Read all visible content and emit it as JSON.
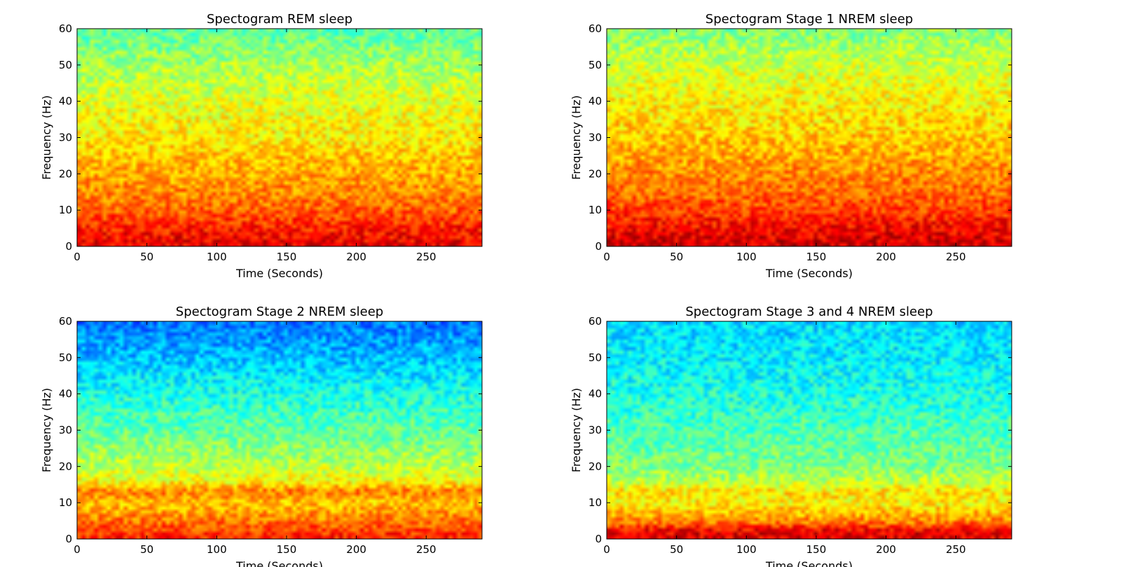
{
  "chart_data": [
    {
      "type": "heatmap",
      "title": "Spectogram REM sleep",
      "xlabel": "Time (Seconds)",
      "ylabel": "Frequency (Hz)",
      "xlim": [
        0,
        290
      ],
      "ylim": [
        0,
        60
      ],
      "xticks": [
        "0",
        "50",
        "100",
        "150",
        "200",
        "250"
      ],
      "yticks": [
        "0",
        "10",
        "20",
        "30",
        "40",
        "50",
        "60"
      ],
      "colormap": "jet",
      "power_profile": [
        {
          "frequency": 0,
          "level": 0.9
        },
        {
          "frequency": 5,
          "level": 0.85
        },
        {
          "frequency": 10,
          "level": 0.78
        },
        {
          "frequency": 15,
          "level": 0.74
        },
        {
          "frequency": 20,
          "level": 0.71
        },
        {
          "frequency": 25,
          "level": 0.68
        },
        {
          "frequency": 30,
          "level": 0.64
        },
        {
          "frequency": 40,
          "level": 0.6
        },
        {
          "frequency": 50,
          "level": 0.54
        },
        {
          "frequency": 60,
          "level": 0.46
        }
      ]
    },
    {
      "type": "heatmap",
      "title": "Spectogram Stage 1 NREM sleep",
      "xlabel": "Time (Seconds)",
      "ylabel": "Frequency (Hz)",
      "xlim": [
        0,
        290
      ],
      "ylim": [
        0,
        60
      ],
      "xticks": [
        "0",
        "50",
        "100",
        "150",
        "200",
        "250"
      ],
      "yticks": [
        "0",
        "10",
        "20",
        "30",
        "40",
        "50",
        "60"
      ],
      "colormap": "jet",
      "power_profile": [
        {
          "frequency": 0,
          "level": 0.93
        },
        {
          "frequency": 5,
          "level": 0.88
        },
        {
          "frequency": 10,
          "level": 0.81
        },
        {
          "frequency": 15,
          "level": 0.77
        },
        {
          "frequency": 20,
          "level": 0.74
        },
        {
          "frequency": 25,
          "level": 0.71
        },
        {
          "frequency": 30,
          "level": 0.68
        },
        {
          "frequency": 40,
          "level": 0.63
        },
        {
          "frequency": 50,
          "level": 0.58
        },
        {
          "frequency": 60,
          "level": 0.5
        }
      ]
    },
    {
      "type": "heatmap",
      "title": "Spectogram Stage 2 NREM sleep",
      "xlabel": "Time (Seconds)",
      "ylabel": "Frequency (Hz)",
      "xlim": [
        0,
        290
      ],
      "ylim": [
        0,
        60
      ],
      "xticks": [
        "0",
        "50",
        "100",
        "150",
        "200",
        "250"
      ],
      "yticks": [
        "0",
        "10",
        "20",
        "30",
        "40",
        "50",
        "60"
      ],
      "colormap": "jet",
      "power_profile": [
        {
          "frequency": 0,
          "level": 0.86
        },
        {
          "frequency": 5,
          "level": 0.76
        },
        {
          "frequency": 10,
          "level": 0.68
        },
        {
          "frequency": 13,
          "level": 0.76
        },
        {
          "frequency": 16,
          "level": 0.62
        },
        {
          "frequency": 20,
          "level": 0.56
        },
        {
          "frequency": 30,
          "level": 0.47
        },
        {
          "frequency": 40,
          "level": 0.4
        },
        {
          "frequency": 50,
          "level": 0.31
        },
        {
          "frequency": 60,
          "level": 0.24
        }
      ]
    },
    {
      "type": "heatmap",
      "title": "Spectogram Stage 3 and 4 NREM sleep",
      "xlabel": "Time (Seconds)",
      "ylabel": "Frequency (Hz)",
      "xlim": [
        0,
        290
      ],
      "ylim": [
        0,
        60
      ],
      "xticks": [
        "0",
        "50",
        "100",
        "150",
        "200",
        "250"
      ],
      "yticks": [
        "0",
        "10",
        "20",
        "30",
        "40",
        "50",
        "60"
      ],
      "colormap": "jet",
      "power_profile": [
        {
          "frequency": 0,
          "level": 0.9
        },
        {
          "frequency": 2,
          "level": 0.9
        },
        {
          "frequency": 5,
          "level": 0.74
        },
        {
          "frequency": 10,
          "level": 0.63
        },
        {
          "frequency": 13,
          "level": 0.66
        },
        {
          "frequency": 16,
          "level": 0.56
        },
        {
          "frequency": 20,
          "level": 0.5
        },
        {
          "frequency": 30,
          "level": 0.45
        },
        {
          "frequency": 40,
          "level": 0.4
        },
        {
          "frequency": 50,
          "level": 0.36
        },
        {
          "frequency": 60,
          "level": 0.34
        }
      ]
    }
  ]
}
